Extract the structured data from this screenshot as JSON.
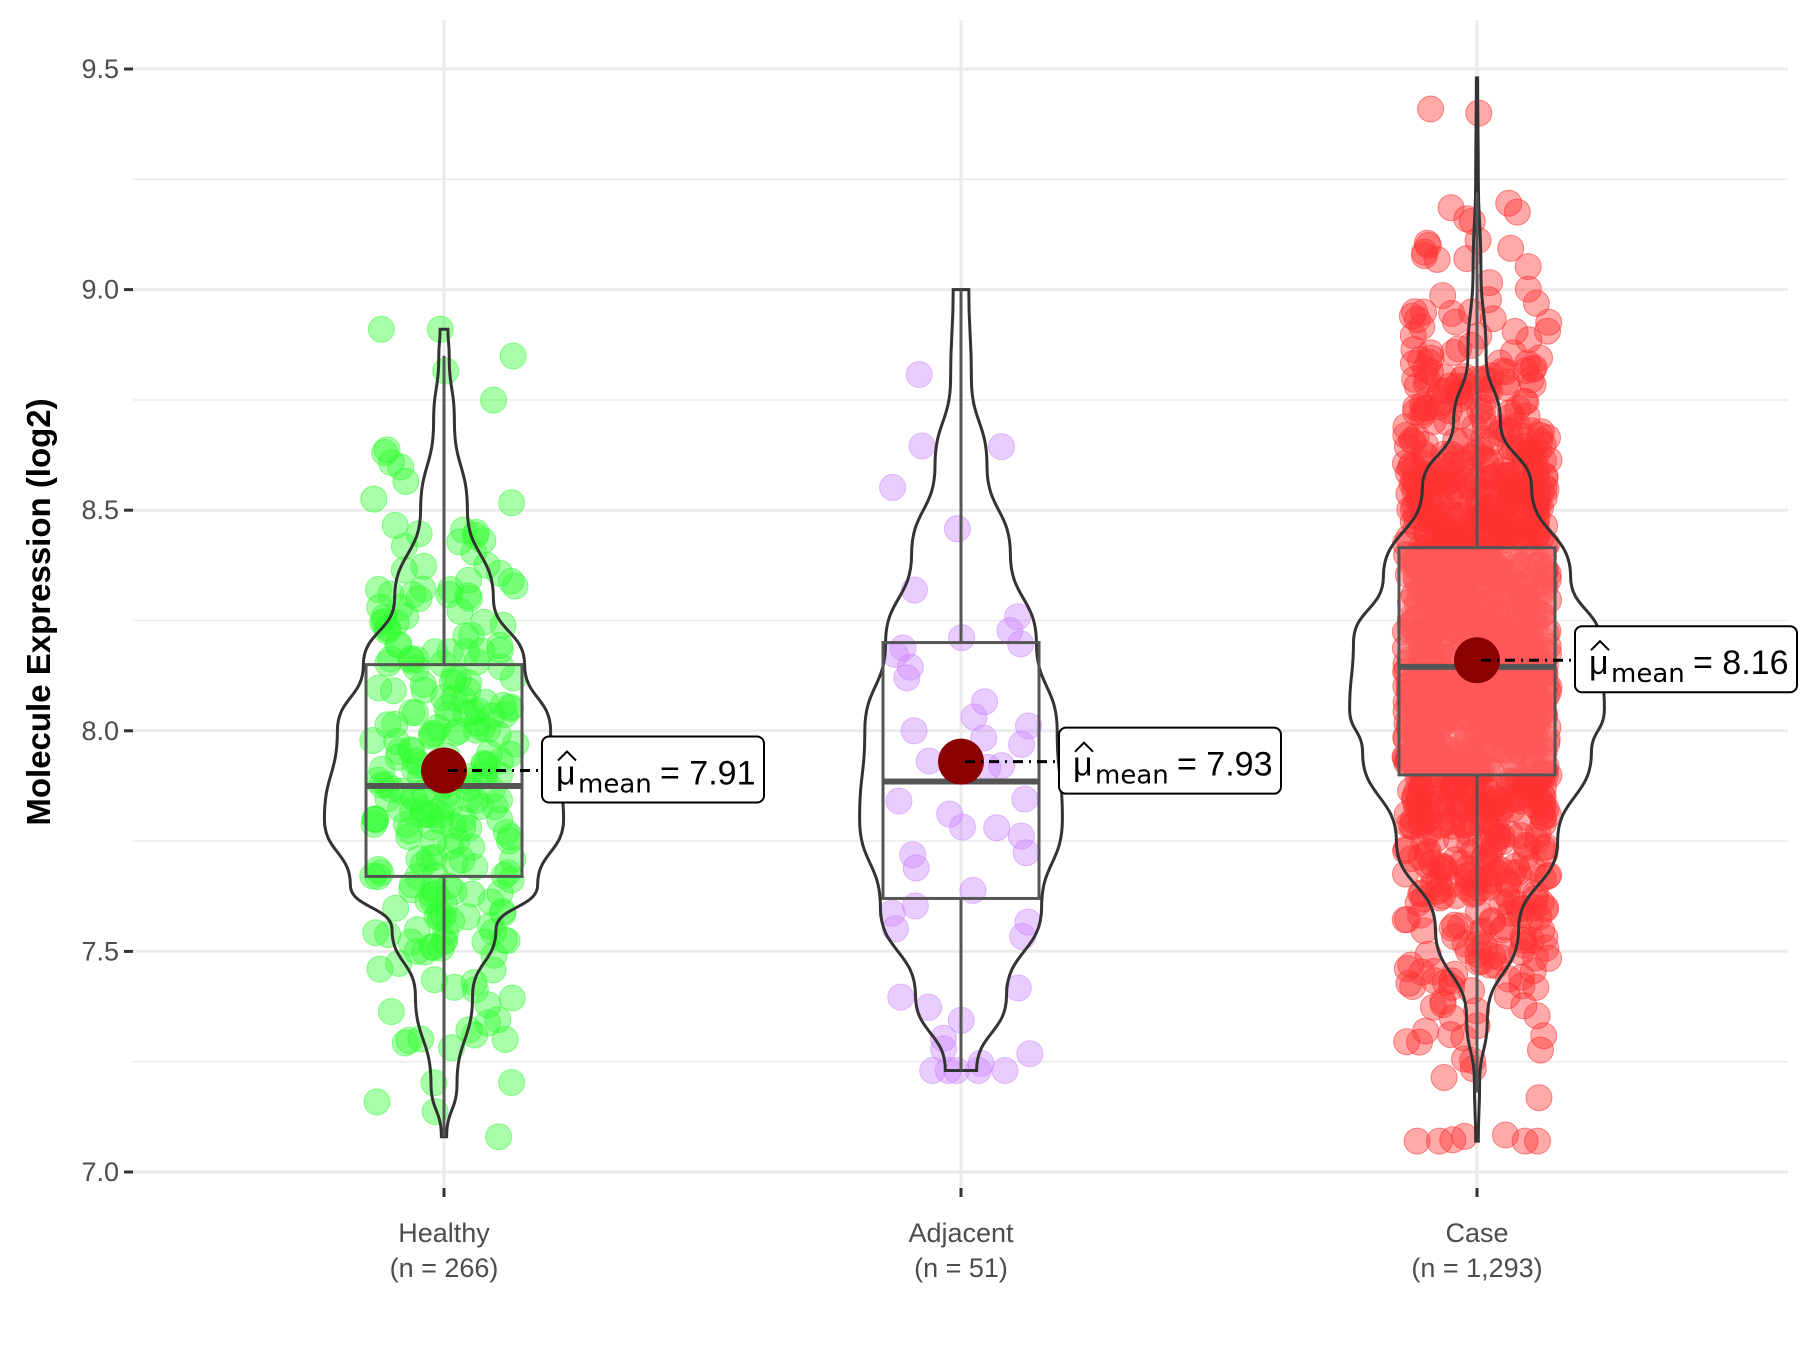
{
  "chart_data": {
    "type": "violin",
    "title": "",
    "xlabel": "",
    "ylabel": "Molecule Expression (log2)",
    "ylim": [
      6.95,
      9.6
    ],
    "yticks": [
      7.0,
      7.5,
      8.0,
      8.5,
      9.0,
      9.5
    ],
    "ytick_labels": [
      "7.0",
      "7.5",
      "8.0",
      "8.5",
      "9.0",
      "9.5"
    ],
    "grid": true,
    "legend": "none",
    "categories": [
      {
        "name": "Healthy",
        "n_label": "(n = 266)",
        "n": 266,
        "color": "#33ff33",
        "mean": 7.91,
        "mean_label": "= 7.91",
        "box": {
          "whisker_low": 7.08,
          "q1": 7.67,
          "median": 7.875,
          "q3": 8.15,
          "whisker_high": 8.85
        },
        "violin": {
          "min": 7.08,
          "max": 8.91,
          "profile": [
            [
              7.08,
              0.02
            ],
            [
              7.2,
              0.1
            ],
            [
              7.4,
              0.22
            ],
            [
              7.55,
              0.4
            ],
            [
              7.65,
              0.72
            ],
            [
              7.8,
              0.92
            ],
            [
              8.0,
              0.82
            ],
            [
              8.15,
              0.62
            ],
            [
              8.3,
              0.38
            ],
            [
              8.5,
              0.18
            ],
            [
              8.7,
              0.08
            ],
            [
              8.85,
              0.04
            ],
            [
              8.91,
              0.03
            ]
          ]
        }
      },
      {
        "name": "Adjacent",
        "n_label": "(n = 51)",
        "n": 51,
        "color": "#cc88ff",
        "mean": 7.93,
        "mean_label": "= 7.93",
        "box": {
          "whisker_low": 7.23,
          "q1": 7.62,
          "median": 7.885,
          "q3": 8.2,
          "whisker_high": 9.0
        },
        "violin": {
          "min": 7.23,
          "max": 9.0,
          "profile": [
            [
              7.23,
              0.12
            ],
            [
              7.4,
              0.35
            ],
            [
              7.6,
              0.62
            ],
            [
              7.8,
              0.78
            ],
            [
              8.0,
              0.74
            ],
            [
              8.2,
              0.58
            ],
            [
              8.4,
              0.38
            ],
            [
              8.6,
              0.2
            ],
            [
              8.8,
              0.08
            ],
            [
              9.0,
              0.06
            ]
          ]
        }
      },
      {
        "name": "Case",
        "n_label": "(n = 1,293)",
        "n": 1293,
        "color": "#ff3333",
        "mean": 8.16,
        "mean_label": "= 8.16",
        "box": {
          "whisker_low": 7.18,
          "q1": 7.9,
          "median": 8.145,
          "q3": 8.415,
          "whisker_high": 9.22
        },
        "violin": {
          "min": 7.07,
          "max": 9.48,
          "profile": [
            [
              7.07,
              0.01
            ],
            [
              7.2,
              0.02
            ],
            [
              7.35,
              0.08
            ],
            [
              7.55,
              0.32
            ],
            [
              7.75,
              0.62
            ],
            [
              7.95,
              0.88
            ],
            [
              8.05,
              0.98
            ],
            [
              8.2,
              0.95
            ],
            [
              8.35,
              0.72
            ],
            [
              8.55,
              0.42
            ],
            [
              8.7,
              0.18
            ],
            [
              8.85,
              0.07
            ],
            [
              9.05,
              0.03
            ],
            [
              9.25,
              0.01
            ],
            [
              9.48,
              0.005
            ]
          ]
        }
      }
    ],
    "mean_marker_color": "#8b0000",
    "mean_symbol": "μ̂",
    "mean_subscript": "mean"
  }
}
